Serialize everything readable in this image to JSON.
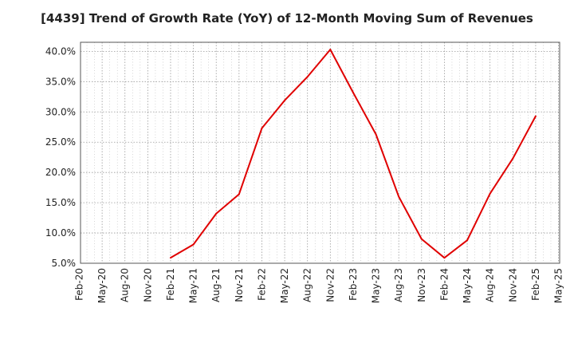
{
  "chart_data": {
    "type": "line",
    "title": "[4439]  Trend of Growth Rate (YoY) of 12-Month Moving Sum of Revenues",
    "xlabel": "",
    "ylabel": "",
    "x_ticks": [
      "Feb-20",
      "May-20",
      "Aug-20",
      "Nov-20",
      "Feb-21",
      "May-21",
      "Aug-21",
      "Nov-21",
      "Feb-22",
      "May-22",
      "Aug-22",
      "Nov-22",
      "Feb-23",
      "May-23",
      "Aug-23",
      "Nov-23",
      "Feb-24",
      "May-24",
      "Aug-24",
      "Nov-24",
      "Feb-25",
      "May-25"
    ],
    "y_ticks": [
      "5.0%",
      "10.0%",
      "15.0%",
      "20.0%",
      "25.0%",
      "30.0%",
      "35.0%",
      "40.0%"
    ],
    "ylim": [
      5,
      41.5
    ],
    "grid": true,
    "line_color": "#e00000",
    "series": [
      {
        "x": [
          "Feb-21",
          "May-21",
          "Aug-21",
          "Nov-21",
          "Feb-22",
          "May-22",
          "Aug-22",
          "Nov-22",
          "Feb-23",
          "May-23",
          "Aug-23",
          "Nov-23",
          "Feb-24",
          "May-24",
          "Aug-24",
          "Nov-24",
          "Feb-25"
        ],
        "values": [
          5.9,
          8.1,
          13.2,
          16.4,
          27.3,
          31.9,
          35.8,
          40.3,
          33.2,
          26.3,
          16.0,
          9.0,
          5.9,
          8.8,
          16.5,
          22.3,
          29.3
        ]
      }
    ]
  }
}
